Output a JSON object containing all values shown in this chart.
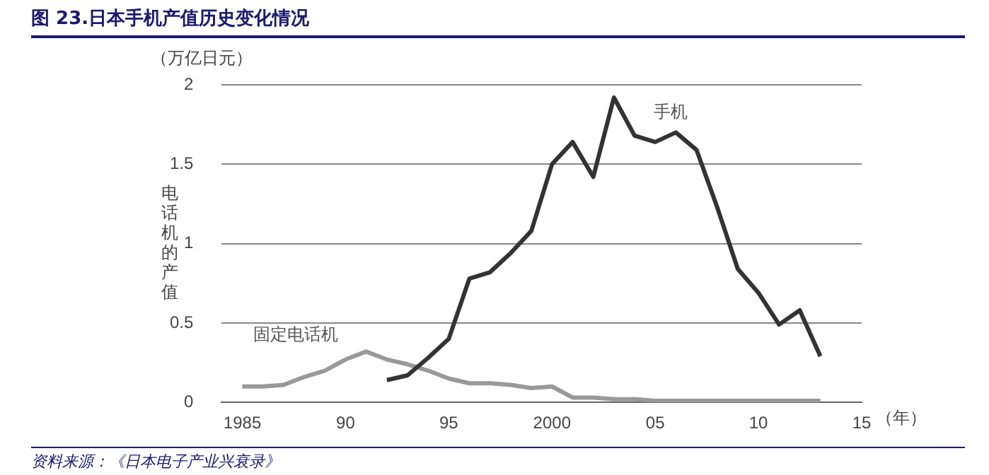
{
  "chart_data": {
    "type": "line",
    "title": "图 23.日本手机产值历史变化情况",
    "ylabel": "电话机的产值",
    "xlabel": "（年）",
    "annotations": [
      "（万亿日元）",
      "资料来源：《日本电子产业兴衰录》"
    ],
    "x": [
      1985,
      1986,
      1987,
      1988,
      1989,
      1990,
      1991,
      1992,
      1993,
      1994,
      1995,
      1996,
      1997,
      1998,
      1999,
      2000,
      2001,
      2002,
      2003,
      2004,
      2005,
      2006,
      2007,
      2008,
      2009,
      2010,
      2011,
      2012,
      2013
    ],
    "series": [
      {
        "name": "手机",
        "color": "#333333",
        "values": [
          null,
          null,
          null,
          null,
          null,
          null,
          null,
          0.14,
          0.17,
          0.28,
          0.4,
          0.78,
          0.82,
          0.94,
          1.08,
          1.5,
          1.64,
          1.42,
          1.92,
          1.68,
          1.64,
          1.7,
          1.59,
          1.23,
          0.84,
          0.69,
          0.49,
          0.58,
          0.29
        ]
      },
      {
        "name": "固定电话机",
        "color": "#999999",
        "values": [
          0.1,
          0.1,
          0.11,
          0.16,
          0.2,
          0.27,
          0.32,
          0.27,
          0.24,
          0.2,
          0.15,
          0.12,
          0.12,
          0.11,
          0.09,
          0.1,
          0.03,
          0.03,
          0.02,
          0.02,
          0.01,
          0.01,
          0.01,
          0.01,
          0.01,
          0.01,
          0.01,
          0.01,
          0.01
        ]
      }
    ],
    "xlim": [
      1984,
      2015
    ],
    "xticks": [
      {
        "value": 1985,
        "label": "1985"
      },
      {
        "value": 1990,
        "label": "90"
      },
      {
        "value": 1995,
        "label": "95"
      },
      {
        "value": 2000,
        "label": "2000"
      },
      {
        "value": 2005,
        "label": "05"
      },
      {
        "value": 2010,
        "label": "10"
      },
      {
        "value": 2015,
        "label": "15"
      }
    ],
    "ylim": [
      0,
      2
    ],
    "yticks": [
      0,
      0.5,
      1,
      1.5,
      2
    ],
    "grid": "y",
    "legend": false,
    "marker": "none",
    "line_style": "solid"
  }
}
